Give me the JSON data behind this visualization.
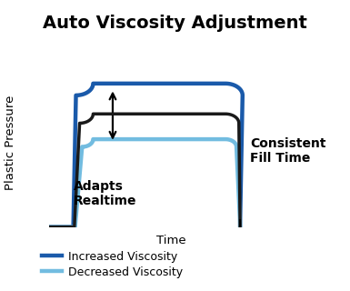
{
  "title": "Auto Viscosity Adjustment",
  "ylabel": "Plastic Pressure",
  "xlabel": "Time",
  "adapts_label": "Adapts\nRealtime",
  "fill_label": "Consistent\nFill Time",
  "legend": [
    {
      "label": "Increased Viscosity",
      "color": "#1a5aaa",
      "lw": 3.2
    },
    {
      "label": "Decreased Viscosity",
      "color": "#72bce0",
      "lw": 3.2
    }
  ],
  "curve_high_color": "#1a5aaa",
  "curve_mid_color": "#1a1a1a",
  "curve_low_color": "#72bce0",
  "curve_high_lw": 3.2,
  "curve_mid_lw": 2.5,
  "curve_low_lw": 3.2,
  "axis_color": "#888888",
  "background_color": "#ffffff",
  "title_fontsize": 14,
  "label_fontsize": 9.5,
  "adapts_fontsize": 10,
  "fill_fontsize": 10,
  "legend_fontsize": 9
}
